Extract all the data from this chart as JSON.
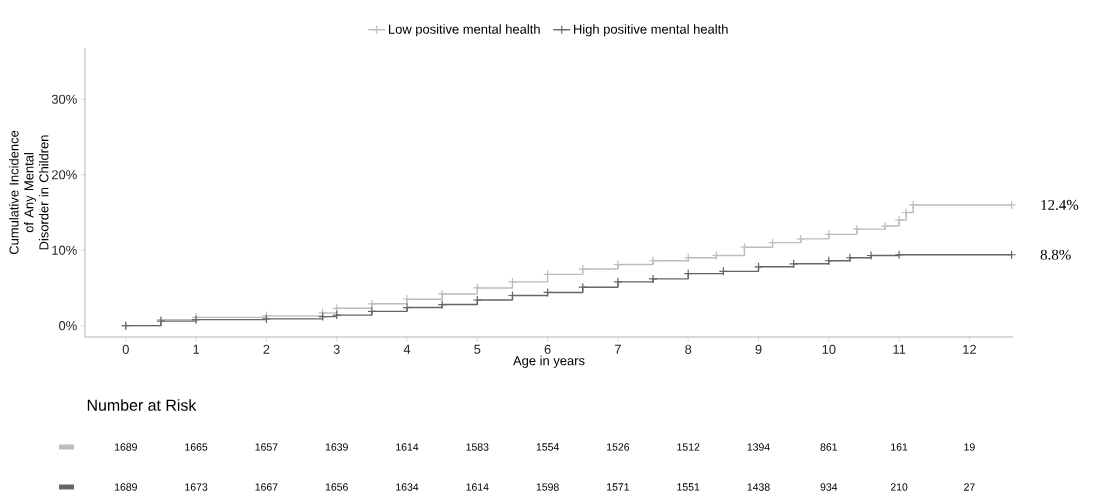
{
  "chart_data": {
    "type": "step",
    "xlabel": "Age in years",
    "ylabel": "Cumulative Incidence of Any Mental Disorder in Children",
    "xlim": [
      -0.58,
      12.62
    ],
    "ylim": [
      -1.5,
      36.8
    ],
    "xticks": [
      0,
      1,
      2,
      3,
      4,
      5,
      6,
      7,
      8,
      9,
      10,
      11,
      12
    ],
    "yticks": [
      {
        "value": 0,
        "label": "0%"
      },
      {
        "value": 10,
        "label": "10%"
      },
      {
        "value": 20,
        "label": "20%"
      },
      {
        "value": 30,
        "label": "30%"
      }
    ],
    "grid": false,
    "legend": "top",
    "marker": "cross",
    "line_style": "solid",
    "series": [
      {
        "name": "Low positive mental health",
        "color": "#bdbdbd",
        "x": [
          0,
          0.5,
          1,
          2,
          2.8,
          3,
          3.5,
          4,
          4.5,
          5,
          5.5,
          6,
          6.5,
          7,
          7.5,
          8,
          8.4,
          8.8,
          9.2,
          9.6,
          10,
          10.4,
          10.8,
          11,
          11.1,
          11.2,
          12.6
        ],
        "values": [
          0,
          0.8,
          1.1,
          1.3,
          1.7,
          2.3,
          2.9,
          3.5,
          4.2,
          5.0,
          5.8,
          6.8,
          7.5,
          8.1,
          8.6,
          9.0,
          9.3,
          10.4,
          11.0,
          11.5,
          12.1,
          12.8,
          13.2,
          14.0,
          15.0,
          16.0,
          16.0
        ]
      },
      {
        "name": "High positive mental health",
        "color": "#666666",
        "x": [
          0,
          0.5,
          1,
          2,
          2.8,
          3,
          3.5,
          4,
          4.5,
          5,
          5.5,
          6,
          6.5,
          7,
          7.5,
          8,
          8.5,
          9,
          9.5,
          10,
          10.3,
          10.6,
          11,
          12.6
        ],
        "values": [
          0,
          0.6,
          0.8,
          0.9,
          1.2,
          1.4,
          1.9,
          2.4,
          2.8,
          3.4,
          4.0,
          4.4,
          5.1,
          5.8,
          6.2,
          6.9,
          7.2,
          7.8,
          8.2,
          8.6,
          9.0,
          9.3,
          9.4,
          9.4
        ]
      }
    ],
    "annotations": [
      "12.4%",
      "8.8%",
      "Number at Risk",
      "1689",
      "1665",
      "1657",
      "1639",
      "1614",
      "1583",
      "1554",
      "1526",
      "1512",
      "1394",
      "861",
      "161",
      "19",
      "1689",
      "1673",
      "1667",
      "1656",
      "1634",
      "1614",
      "1598",
      "1571",
      "1551",
      "1438",
      "934",
      "210",
      "27"
    ]
  }
}
